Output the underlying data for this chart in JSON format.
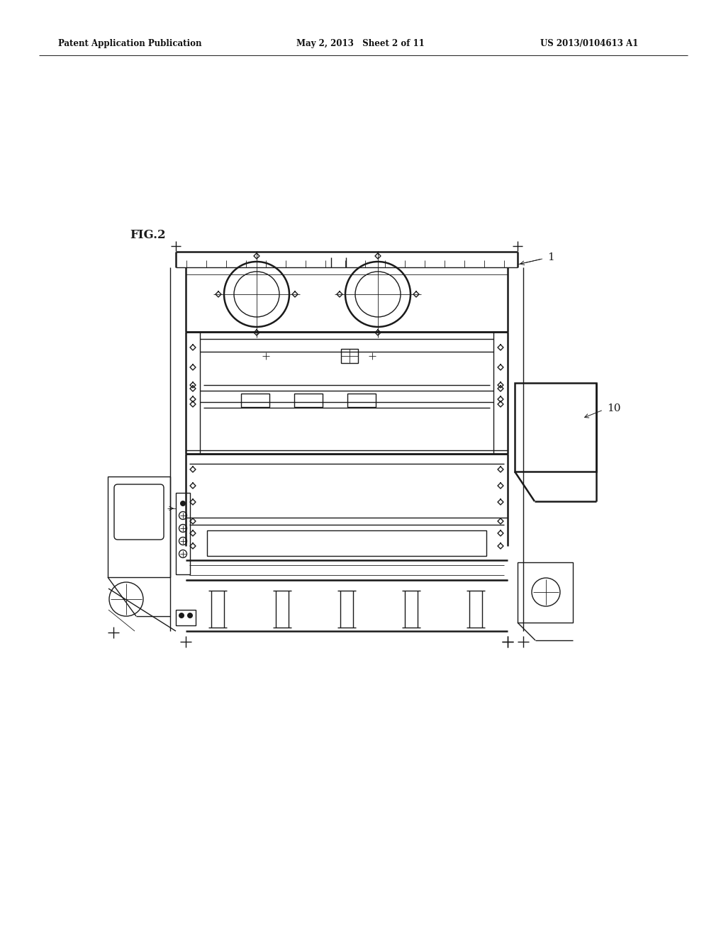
{
  "background_color": "#ffffff",
  "header_left": "Patent Application Publication",
  "header_center": "May 2, 2013   Sheet 2 of 11",
  "header_right": "US 2013/0104613 A1",
  "fig_label": "FIG.2",
  "ref1": "1",
  "ref10": "10",
  "line_color": "#1a1a1a",
  "lw": 1.0,
  "tlw": 0.6,
  "thk": 1.8
}
